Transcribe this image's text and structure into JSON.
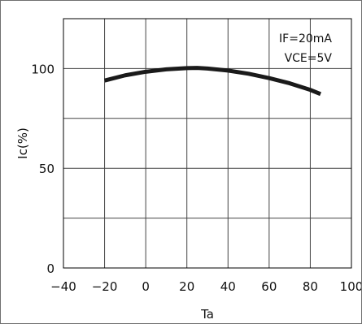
{
  "chart_data": {
    "type": "line",
    "title": "",
    "xlabel": "Ta",
    "ylabel": "Ic(%)",
    "xlim": [
      -40,
      100
    ],
    "ylim": [
      0,
      125
    ],
    "x_ticks": [
      -40,
      -20,
      0,
      20,
      40,
      60,
      80,
      100
    ],
    "x_tick_labels": [
      "−40",
      "−20",
      "0",
      "20",
      "40",
      "60",
      "80",
      "100"
    ],
    "y_ticks": [
      0,
      50,
      100
    ],
    "y_tick_labels": [
      "0",
      "50",
      "100"
    ],
    "grid": true,
    "annotations": [
      "IF=20mA",
      "VCE=5V"
    ],
    "series": [
      {
        "color": "#1a1a1a",
        "x": [
          -20,
          -10,
          0,
          10,
          20,
          25,
          30,
          40,
          50,
          60,
          70,
          80,
          85
        ],
        "y": [
          94,
          96.6,
          98.4,
          99.6,
          100.2,
          100.3,
          100,
          99,
          97.4,
          95.2,
          92.6,
          89.3,
          87.2
        ]
      }
    ]
  }
}
